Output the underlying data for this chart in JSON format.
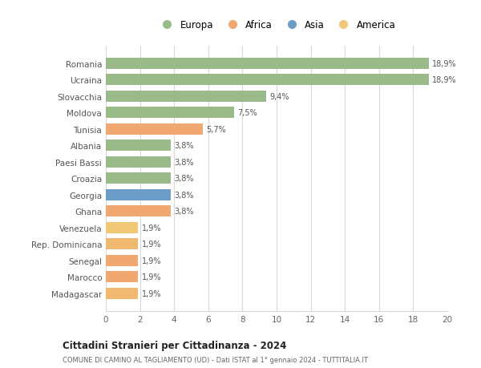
{
  "categories": [
    "Madagascar",
    "Marocco",
    "Senegal",
    "Rep. Dominicana",
    "Venezuela",
    "Ghana",
    "Georgia",
    "Croazia",
    "Paesi Bassi",
    "Albania",
    "Tunisia",
    "Moldova",
    "Slovacchia",
    "Ucraina",
    "Romania"
  ],
  "values": [
    1.9,
    1.9,
    1.9,
    1.9,
    1.9,
    3.8,
    3.8,
    3.8,
    3.8,
    3.8,
    5.7,
    7.5,
    9.4,
    18.9,
    18.9
  ],
  "labels": [
    "1,9%",
    "1,9%",
    "1,9%",
    "1,9%",
    "1,9%",
    "3,8%",
    "3,8%",
    "3,8%",
    "3,8%",
    "3,8%",
    "5,7%",
    "7,5%",
    "9,4%",
    "18,9%",
    "18,9%"
  ],
  "colors": [
    "#f0b870",
    "#f0a870",
    "#f0a870",
    "#f0b870",
    "#f0c878",
    "#f0a870",
    "#6b9dc8",
    "#9aba8a",
    "#9aba8a",
    "#9aba8a",
    "#f0a870",
    "#9aba8a",
    "#9aba8a",
    "#9aba8a",
    "#9aba8a"
  ],
  "legend": {
    "Europa": "#9aba8a",
    "Africa": "#f0a870",
    "Asia": "#6b9dc8",
    "America": "#f0c878"
  },
  "title": "Cittadini Stranieri per Cittadinanza - 2024",
  "subtitle": "COMUNE DI CAMINO AL TAGLIAMENTO (UD) - Dati ISTAT al 1° gennaio 2024 - TUTTITALIA.IT",
  "xlim": [
    0,
    20
  ],
  "xticks": [
    0,
    2,
    4,
    6,
    8,
    10,
    12,
    14,
    16,
    18,
    20
  ],
  "background_color": "#ffffff",
  "grid_color": "#d8d8d8"
}
